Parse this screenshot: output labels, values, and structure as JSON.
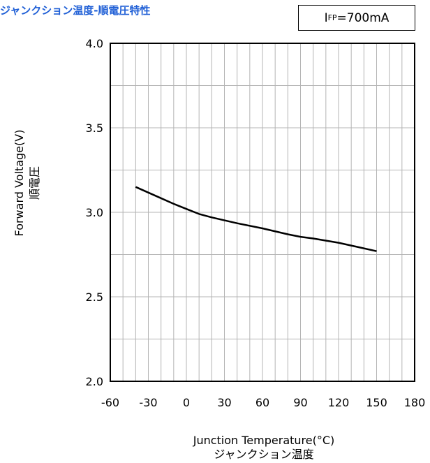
{
  "header": {
    "title": "ジャンクション温度-順電圧特性",
    "condition_main": "I",
    "condition_sub": "FP",
    "condition_value": "=700mA"
  },
  "axes": {
    "ylabel_en": "Forward Voltage(V)",
    "ylabel_jp": "順電圧",
    "xlabel_en": "Junction Temperature(°C)",
    "xlabel_jp": "ジャンクション温度"
  },
  "chart_data": {
    "type": "line",
    "title": "ジャンクション温度-順電圧特性",
    "xlabel": "Junction Temperature(°C) ジャンクション温度",
    "ylabel": "Forward Voltage(V) 順電圧",
    "xlim": [
      -60,
      180
    ],
    "ylim": [
      2.0,
      4.0
    ],
    "x_ticks": [
      -60,
      -30,
      0,
      30,
      60,
      90,
      120,
      150,
      180
    ],
    "y_ticks": [
      2.0,
      2.5,
      3.0,
      3.5,
      4.0
    ],
    "x_tick_labels": [
      "-60",
      "-30",
      "0",
      "30",
      "60",
      "90",
      "120",
      "150",
      "180"
    ],
    "y_tick_labels": [
      "2.0",
      "2.5",
      "3.0",
      "3.5",
      "4.0"
    ],
    "x_minor_step": 10,
    "y_minor_step": 0.25,
    "grid": true,
    "series": [
      {
        "x": [
          -40,
          -25,
          -10,
          0,
          10,
          20,
          40,
          60,
          80,
          90,
          100,
          120,
          150
        ],
        "y": [
          3.15,
          3.1,
          3.05,
          3.02,
          2.99,
          2.97,
          2.935,
          2.905,
          2.87,
          2.855,
          2.845,
          2.82,
          2.77
        ]
      }
    ],
    "line_color": "#000000",
    "grid_color": "#b4b4b4"
  }
}
